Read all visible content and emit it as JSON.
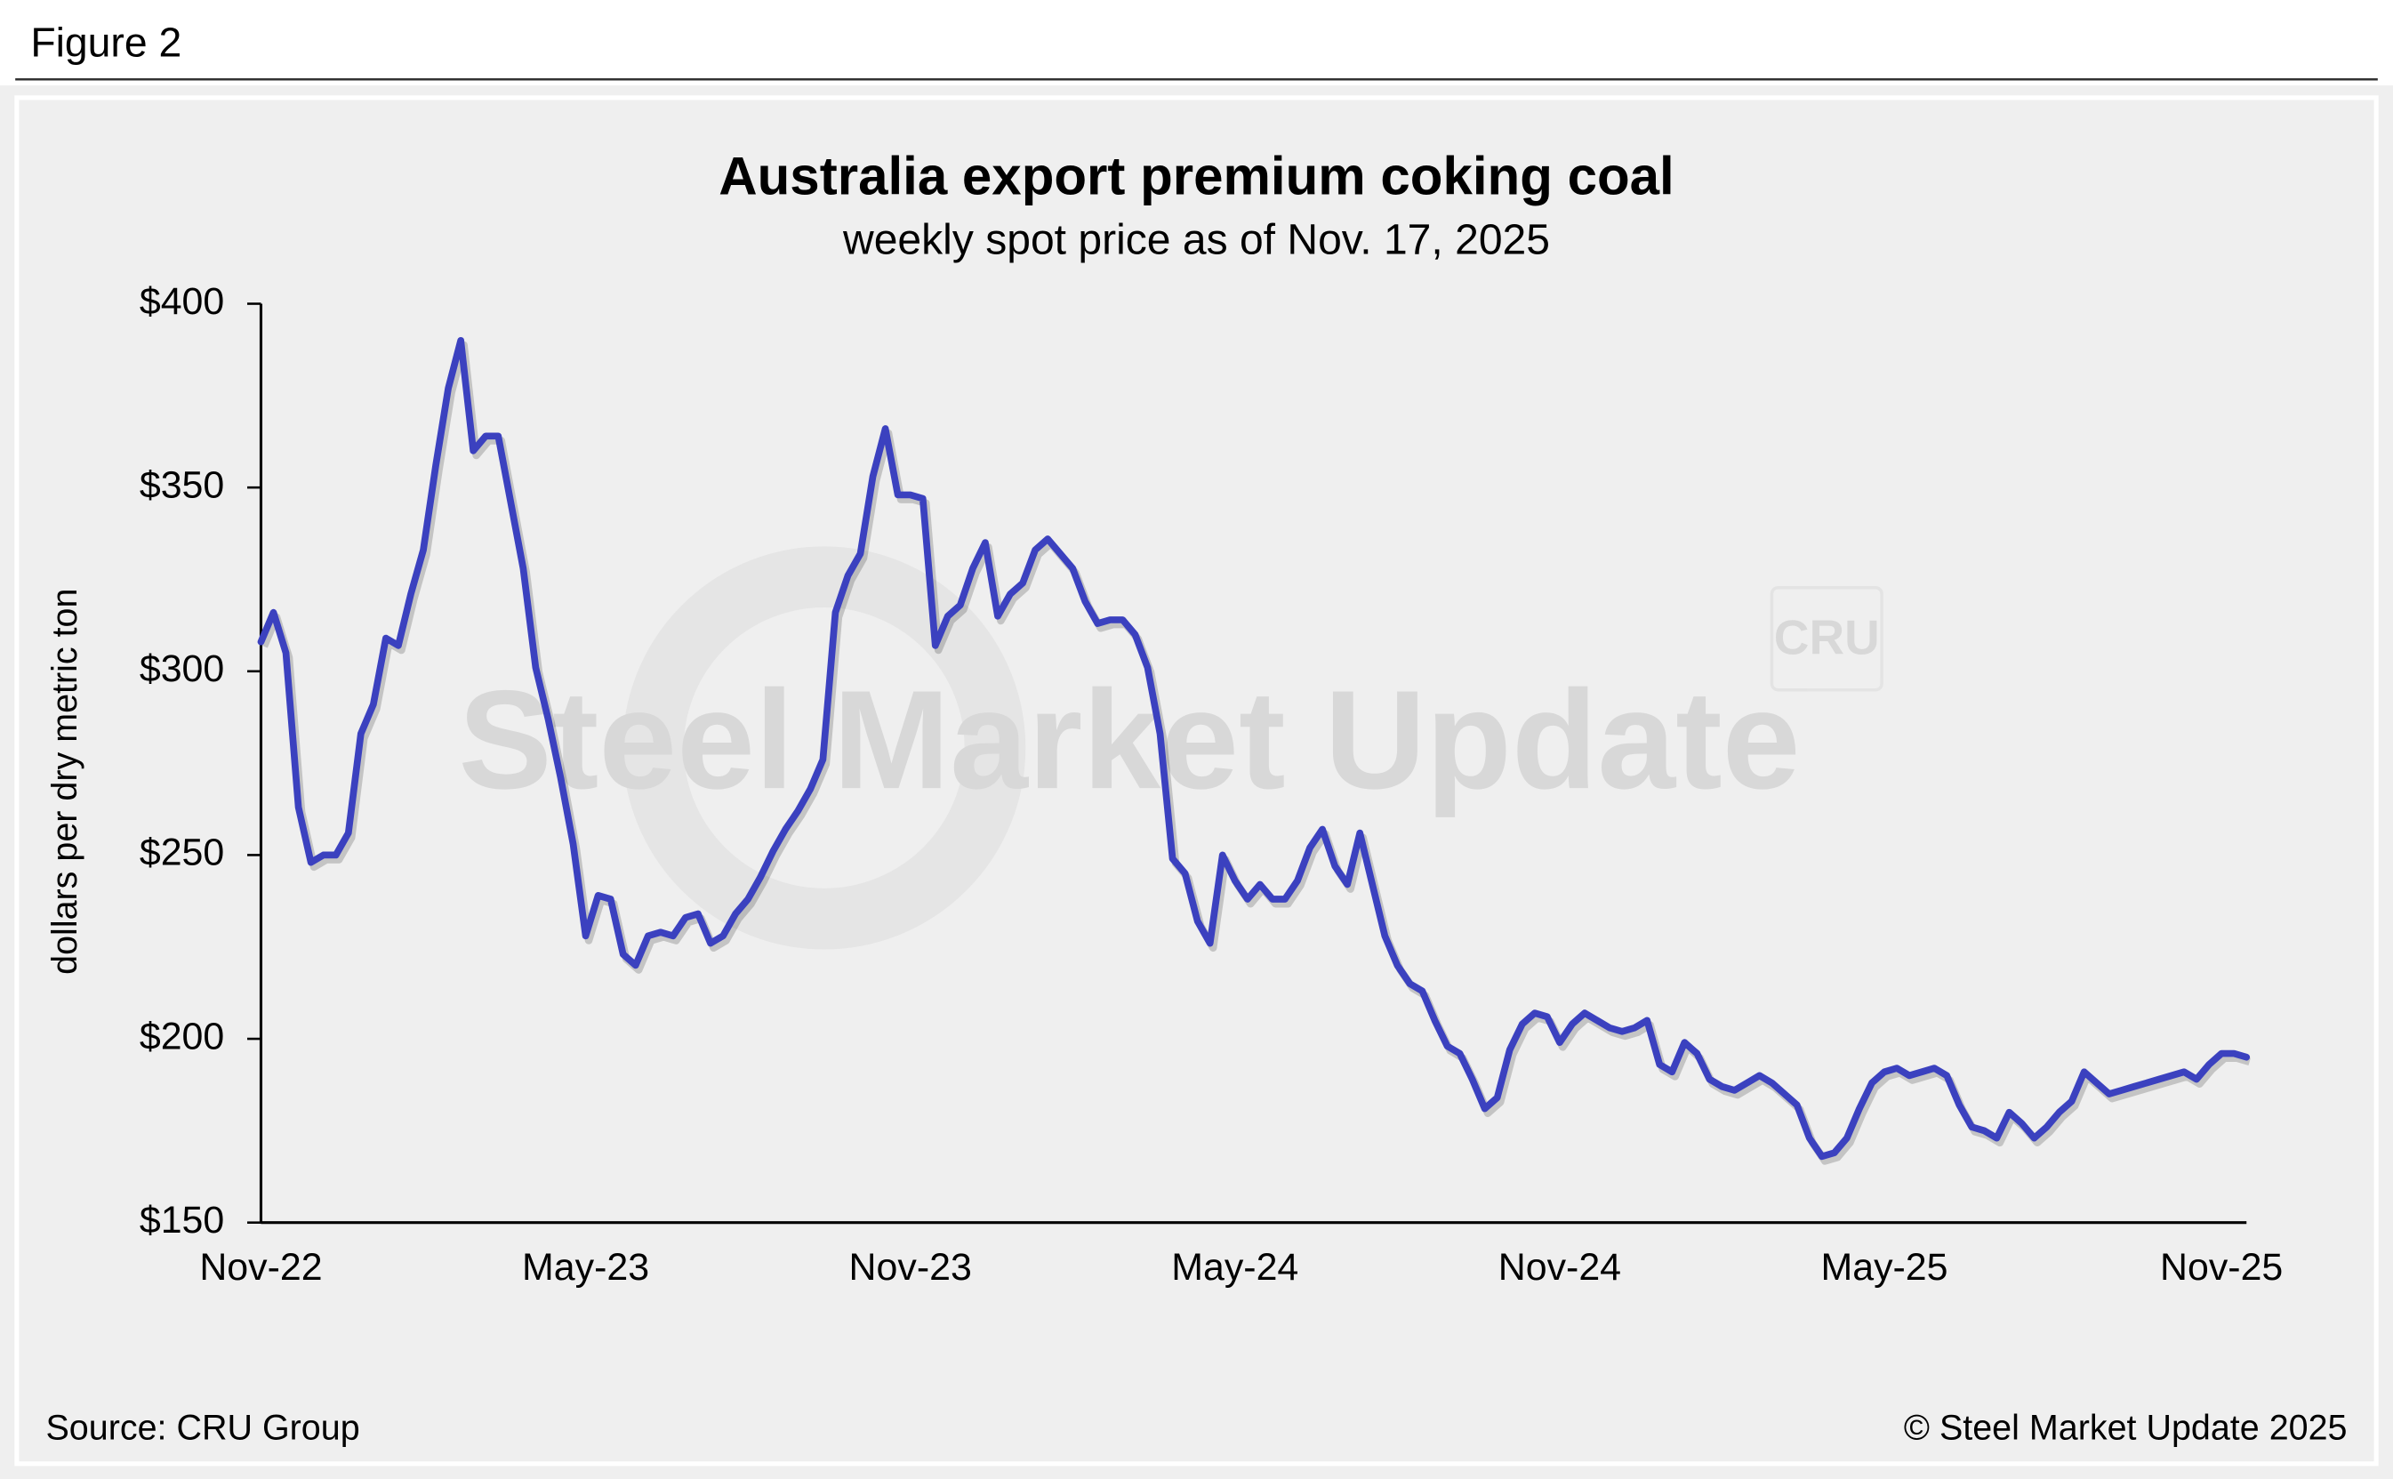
{
  "figure_label": "Figure 2",
  "chart_data": {
    "type": "line",
    "title": "Australia export premium coking coal",
    "subtitle": "weekly spot price as of Nov. 17, 2025",
    "y_label": "dollars per dry metric ton",
    "source": "Source: CRU Group",
    "copyright": "© Steel Market Update 2025",
    "watermark": "Steel Market Update",
    "watermark_logo": "CRU",
    "color": "#3b41bf",
    "grid": false,
    "ylim": [
      150,
      400
    ],
    "yticks": [
      {
        "value": 150,
        "label": "$150"
      },
      {
        "value": 200,
        "label": "$200"
      },
      {
        "value": 250,
        "label": "$250"
      },
      {
        "value": 300,
        "label": "$300"
      },
      {
        "value": 350,
        "label": "$350"
      },
      {
        "value": 400,
        "label": "$400"
      }
    ],
    "categories": [
      "Nov-22",
      null,
      null,
      null,
      null,
      null,
      null,
      null,
      null,
      null,
      null,
      null,
      null,
      null,
      null,
      null,
      null,
      null,
      null,
      null,
      null,
      null,
      null,
      null,
      null,
      null,
      "May-23",
      null,
      null,
      null,
      null,
      null,
      null,
      null,
      null,
      null,
      null,
      null,
      null,
      null,
      null,
      null,
      null,
      null,
      null,
      null,
      null,
      null,
      null,
      null,
      null,
      null,
      "Nov-23",
      null,
      null,
      null,
      null,
      null,
      null,
      null,
      null,
      null,
      null,
      null,
      null,
      null,
      null,
      null,
      null,
      null,
      null,
      null,
      null,
      null,
      null,
      null,
      null,
      null,
      "May-24",
      null,
      null,
      null,
      null,
      null,
      null,
      null,
      null,
      null,
      null,
      null,
      null,
      null,
      null,
      null,
      null,
      null,
      null,
      null,
      null,
      null,
      null,
      null,
      null,
      null,
      "Nov-24",
      null,
      null,
      null,
      null,
      null,
      null,
      null,
      null,
      null,
      null,
      null,
      null,
      null,
      null,
      null,
      null,
      null,
      null,
      null,
      null,
      null,
      null,
      null,
      null,
      null,
      "May-25",
      null,
      null,
      null,
      null,
      null,
      null,
      null,
      null,
      null,
      null,
      null,
      null,
      null,
      null,
      null,
      null,
      null,
      null,
      null,
      null,
      null,
      null,
      null,
      null,
      null,
      null,
      "Nov-25",
      null,
      null
    ],
    "values": [
      308,
      316,
      305,
      263,
      248,
      250,
      250,
      256,
      283,
      291,
      309,
      307,
      321,
      333,
      356,
      377,
      390,
      360,
      364,
      364,
      346,
      328,
      301,
      287,
      271,
      253,
      228,
      239,
      238,
      223,
      220,
      228,
      229,
      228,
      233,
      234,
      226,
      228,
      234,
      238,
      244,
      251,
      257,
      262,
      268,
      276,
      316,
      326,
      332,
      353,
      366,
      348,
      348,
      347,
      307,
      315,
      318,
      328,
      335,
      315,
      321,
      324,
      333,
      336,
      332,
      328,
      319,
      313,
      314,
      314,
      310,
      301,
      283,
      249,
      245,
      232,
      226,
      250,
      243,
      238,
      242,
      238,
      238,
      243,
      252,
      257,
      247,
      242,
      256,
      242,
      228,
      220,
      215,
      213,
      205,
      198,
      196,
      189,
      181,
      184,
      197,
      204,
      207,
      206,
      199,
      204,
      207,
      205,
      203,
      202,
      203,
      205,
      193,
      191,
      199,
      196,
      189,
      187,
      186,
      188,
      190,
      188,
      185,
      182,
      173,
      168,
      169,
      173,
      181,
      188,
      191,
      192,
      190,
      191,
      192,
      190,
      182,
      176,
      175,
      173,
      180,
      177,
      173,
      176,
      180,
      183,
      191,
      188,
      185,
      186,
      187,
      188,
      189,
      190,
      191,
      189,
      193,
      196,
      196,
      195
    ]
  }
}
